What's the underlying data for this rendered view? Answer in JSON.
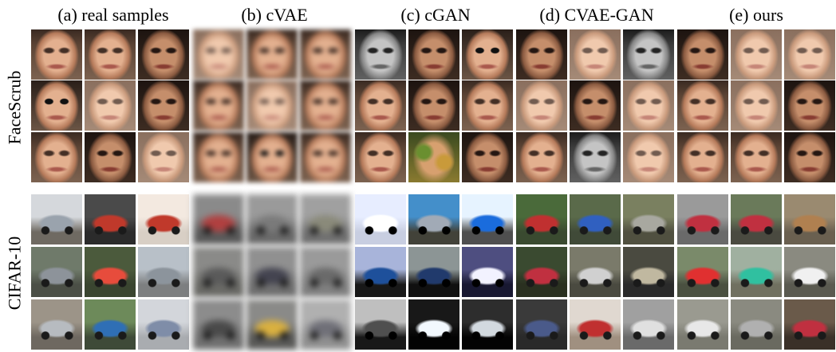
{
  "headers": {
    "a": "(a) real samples",
    "b": "(b) cVAE",
    "c": "(c) cGAN",
    "d": "(d) CVAE-GAN",
    "e": "(e) ours"
  },
  "row_labels": {
    "facescrub": "FaceScrub",
    "cifar": "CIFAR-10"
  },
  "colors": {
    "background": "#ffffff",
    "text": "#000000"
  }
}
